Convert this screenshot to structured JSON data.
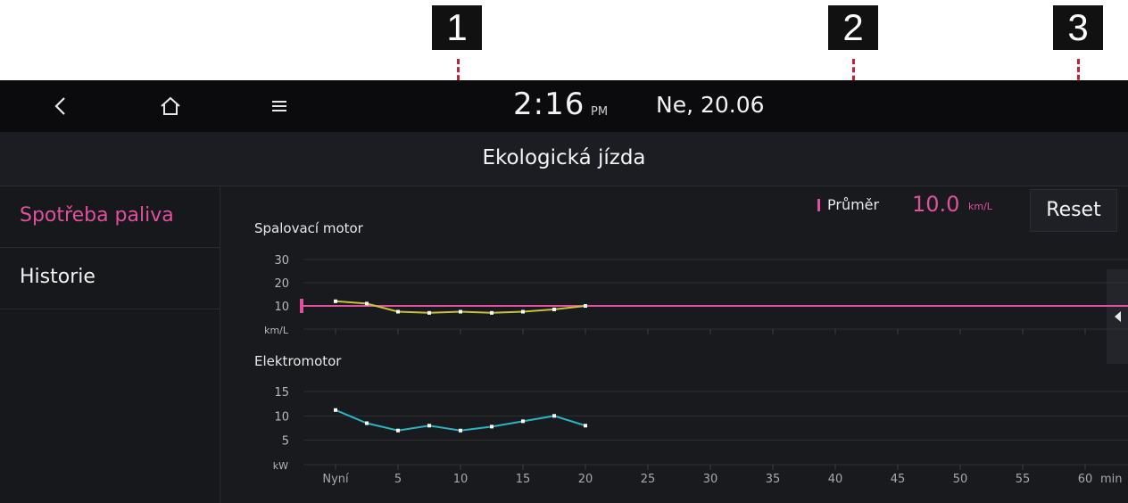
{
  "callouts": [
    "1",
    "2",
    "3"
  ],
  "status_bar": {
    "time": "2:16",
    "ampm": "PM",
    "date": "Ne, 20.06",
    "icons": [
      "back-icon",
      "home-icon",
      "menu-icon"
    ]
  },
  "title": "Ekologická jízda",
  "sidebar": {
    "items": [
      {
        "label": "Spotřeba paliva",
        "selected": true
      },
      {
        "label": "Historie",
        "selected": false
      }
    ]
  },
  "average": {
    "label": "Průměr",
    "value": "10.0",
    "unit": "km/L"
  },
  "reset_label": "Reset",
  "colors": {
    "accent": "#e0509e",
    "fuel_line": "#c5c53a",
    "electric_line": "#2bb5c0",
    "background": "#191a1e"
  },
  "chart_data": [
    {
      "type": "line",
      "title": "Spalovací motor",
      "ylabel": "km/L",
      "yticks": [
        "30",
        "20",
        "10"
      ],
      "ylim": [
        0,
        30
      ],
      "xlim": [
        0,
        62
      ],
      "x": [
        0,
        2.5,
        5,
        7.5,
        10,
        12.5,
        15,
        17.5,
        20
      ],
      "values": [
        12,
        11,
        7.5,
        7,
        7.5,
        7,
        7.5,
        8.5,
        10
      ],
      "average": 10
    },
    {
      "type": "line",
      "title": "Elektromotor",
      "ylabel": "kW",
      "yticks": [
        "15",
        "10",
        "5"
      ],
      "ylim": [
        0,
        15
      ],
      "xlim": [
        0,
        62
      ],
      "x": [
        0,
        2.5,
        5,
        7.5,
        10,
        12.5,
        15,
        17.5,
        20
      ],
      "values": [
        11.2,
        8.5,
        7,
        8,
        7,
        7.8,
        8.9,
        10,
        8
      ],
      "xticks": [
        "Nyní",
        "5",
        "10",
        "15",
        "20",
        "25",
        "30",
        "35",
        "40",
        "45",
        "50",
        "55",
        "60"
      ],
      "xunit": "min"
    }
  ]
}
